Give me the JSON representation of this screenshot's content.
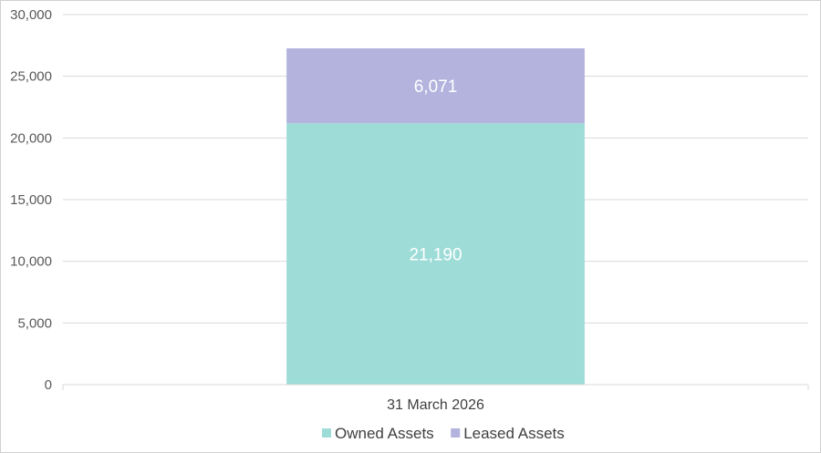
{
  "chart_data": {
    "type": "bar",
    "stacked": true,
    "categories": [
      "31 March 2026"
    ],
    "series": [
      {
        "name": "Owned Assets",
        "values": [
          21190
        ],
        "labels": [
          "21,190"
        ],
        "color": "#9edcd8"
      },
      {
        "name": "Leased Assets",
        "values": [
          6071
        ],
        "labels": [
          "6,071"
        ],
        "color": "#b3b3de"
      }
    ],
    "ylim": [
      0,
      30000
    ],
    "yticks": [
      0,
      5000,
      10000,
      15000,
      20000,
      25000,
      30000
    ],
    "ytick_labels": [
      "0",
      "5,000",
      "10,000",
      "15,000",
      "20,000",
      "25,000",
      "30,000"
    ],
    "grid": true,
    "legend": "bottom"
  }
}
